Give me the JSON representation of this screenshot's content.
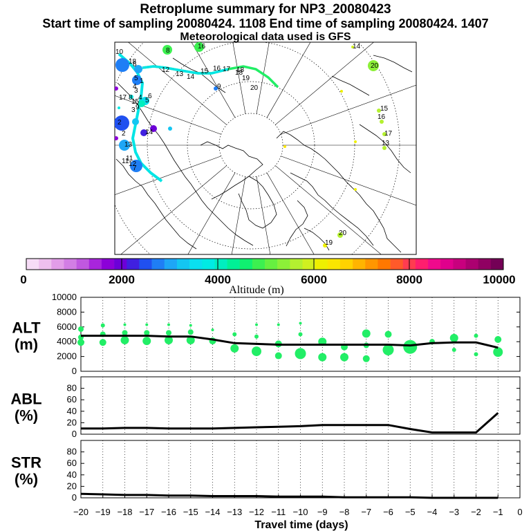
{
  "header": {
    "title": "Retroplume summary for NP3_20080423",
    "subtitle": "Start time of sampling 20080424.  1108     End time of sampling 20080424.  1407",
    "met": "Meteorological data used is GFS"
  },
  "colors": {
    "trajectory": "#00e5e5",
    "mainline": "#000000",
    "green_line": "#22ee66",
    "dot_green": "#22ee66"
  },
  "map": {
    "labels": [
      "10",
      "8",
      "6",
      "16",
      "4",
      "9",
      "18",
      "2",
      "5",
      "1",
      "3",
      "11",
      "12",
      "13",
      "14",
      "15",
      "16",
      "17",
      "18",
      "19",
      "20",
      "17",
      "4",
      "5",
      "12",
      "14",
      "13",
      "15",
      "11",
      "7",
      "8",
      "9",
      "3",
      "2",
      "6",
      "20",
      "14",
      "15",
      "16",
      "17",
      "13",
      "18",
      "19",
      "20"
    ]
  },
  "colorbar": {
    "label": "Altitude (m)",
    "tick_labels": [
      "0",
      "2000",
      "4000",
      "6000",
      "8000",
      "10000"
    ],
    "colors": [
      "#f6dcf6",
      "#eebfee",
      "#e29de8",
      "#d27ee4",
      "#c058e0",
      "#a825dc",
      "#8c00d8",
      "#6c00d8",
      "#4020e0",
      "#2050f0",
      "#1f7ef5",
      "#1ea6f6",
      "#14c6f2",
      "#0adff0",
      "#00ebe4",
      "#00eebf",
      "#00f096",
      "#10f070",
      "#3cf050",
      "#66f040",
      "#8cf038",
      "#b4f030",
      "#d0f020",
      "#eef000",
      "#fae600",
      "#ffd200",
      "#ffb400",
      "#ff9600",
      "#ff7800",
      "#ff5a2a",
      "#ff3c50",
      "#ff1e6e",
      "#f00a8c",
      "#e0008c",
      "#c8007e",
      "#ac0070",
      "#900062",
      "#740056"
    ]
  },
  "chart_data": [
    {
      "type": "line",
      "panel": "ALT",
      "ylabel": "ALT (m)",
      "ylim": [
        0,
        10000
      ],
      "yticks": [
        "0",
        "2000",
        "4000",
        "6000",
        "8000",
        "10000"
      ],
      "x": [
        -20,
        -19,
        -18,
        -17,
        -16,
        -15,
        -14,
        -13,
        -12,
        -11,
        -10,
        -9,
        -8,
        -7,
        -6,
        -5,
        -4,
        -3,
        -2,
        -1
      ],
      "values": [
        4800,
        4800,
        4800,
        4800,
        4700,
        4700,
        4300,
        3800,
        3700,
        3600,
        3600,
        3600,
        3600,
        3600,
        3600,
        3500,
        3800,
        3900,
        3900,
        3200
      ],
      "scatter": [
        {
          "x": -20,
          "y": 5700,
          "s": 4
        },
        {
          "x": -20,
          "y": 4600,
          "s": 4
        },
        {
          "x": -20,
          "y": 3900,
          "s": 5
        },
        {
          "x": -19,
          "y": 6200,
          "s": 3
        },
        {
          "x": -19,
          "y": 5000,
          "s": 4
        },
        {
          "x": -19,
          "y": 3900,
          "s": 5
        },
        {
          "x": -18,
          "y": 6300,
          "s": 2
        },
        {
          "x": -18,
          "y": 5200,
          "s": 4
        },
        {
          "x": -18,
          "y": 4200,
          "s": 6
        },
        {
          "x": -17,
          "y": 6300,
          "s": 2
        },
        {
          "x": -17,
          "y": 5200,
          "s": 4
        },
        {
          "x": -17,
          "y": 4100,
          "s": 6
        },
        {
          "x": -16,
          "y": 6300,
          "s": 2
        },
        {
          "x": -16,
          "y": 5200,
          "s": 4
        },
        {
          "x": -16,
          "y": 4200,
          "s": 6
        },
        {
          "x": -15,
          "y": 6200,
          "s": 2
        },
        {
          "x": -15,
          "y": 5300,
          "s": 4
        },
        {
          "x": -15,
          "y": 4200,
          "s": 6
        },
        {
          "x": -14,
          "y": 5600,
          "s": 2
        },
        {
          "x": -14,
          "y": 4100,
          "s": 5
        },
        {
          "x": -13,
          "y": 5000,
          "s": 3
        },
        {
          "x": -13,
          "y": 3100,
          "s": 6
        },
        {
          "x": -12,
          "y": 6300,
          "s": 2
        },
        {
          "x": -12,
          "y": 4700,
          "s": 3
        },
        {
          "x": -12,
          "y": 2700,
          "s": 7
        },
        {
          "x": -11,
          "y": 6300,
          "s": 2
        },
        {
          "x": -11,
          "y": 3700,
          "s": 5
        },
        {
          "x": -11,
          "y": 2100,
          "s": 5
        },
        {
          "x": -10,
          "y": 6500,
          "s": 2
        },
        {
          "x": -10,
          "y": 5000,
          "s": 3
        },
        {
          "x": -10,
          "y": 2400,
          "s": 8
        },
        {
          "x": -9,
          "y": 4000,
          "s": 6
        },
        {
          "x": -9,
          "y": 1900,
          "s": 6
        },
        {
          "x": -8,
          "y": 3300,
          "s": 5
        },
        {
          "x": -8,
          "y": 1900,
          "s": 6
        },
        {
          "x": -7,
          "y": 5100,
          "s": 6
        },
        {
          "x": -7,
          "y": 3500,
          "s": 4
        },
        {
          "x": -7,
          "y": 1700,
          "s": 5
        },
        {
          "x": -6,
          "y": 5000,
          "s": 5
        },
        {
          "x": -6,
          "y": 2900,
          "s": 8
        },
        {
          "x": -5,
          "y": 3300,
          "s": 10
        },
        {
          "x": -4,
          "y": 4000,
          "s": 4
        },
        {
          "x": -3,
          "y": 4500,
          "s": 6
        },
        {
          "x": -3,
          "y": 2900,
          "s": 3
        },
        {
          "x": -2,
          "y": 4800,
          "s": 3
        },
        {
          "x": -2,
          "y": 2300,
          "s": 3
        },
        {
          "x": -1,
          "y": 4300,
          "s": 5
        },
        {
          "x": -1,
          "y": 2600,
          "s": 7
        }
      ]
    },
    {
      "type": "line",
      "panel": "ABL",
      "ylabel": "ABL (%)",
      "ylim": [
        0,
        100
      ],
      "yticks": [
        "0",
        "20",
        "40",
        "60",
        "80"
      ],
      "x": [
        -20,
        -19,
        -18,
        -17,
        -16,
        -15,
        -14,
        -13,
        -12,
        -11,
        -10,
        -9,
        -8,
        -7,
        -6,
        -5,
        -4,
        -3,
        -2,
        -1
      ],
      "values": [
        10,
        10,
        11,
        11,
        10,
        10,
        10,
        11,
        12,
        13,
        14,
        16,
        16,
        16,
        16,
        9,
        3,
        3,
        3,
        37
      ]
    },
    {
      "type": "line",
      "panel": "STR",
      "ylabel": "STR (%)",
      "ylim": [
        0,
        100
      ],
      "yticks": [
        "0",
        "20",
        "40",
        "60",
        "80"
      ],
      "xlabel": "Travel time (days)",
      "xlim": [
        -20,
        0
      ],
      "xticks": [
        "−20",
        "−19",
        "−18",
        "−17",
        "−16",
        "−15",
        "−14",
        "−13",
        "−12",
        "−11",
        "−10",
        "−9",
        "−8",
        "−7",
        "−6",
        "−5",
        "−4",
        "−3",
        "−2",
        "−1",
        "0"
      ],
      "x": [
        -20,
        -19,
        -18,
        -17,
        -16,
        -15,
        -14,
        -13,
        -12,
        -11,
        -10,
        -9,
        -8,
        -7,
        -6,
        -5,
        -4,
        -3,
        -2,
        -1
      ],
      "values": [
        7,
        6,
        5,
        5,
        4,
        4,
        3,
        3,
        3,
        2,
        2,
        2,
        1,
        1,
        1,
        1,
        0,
        0,
        0,
        0
      ]
    }
  ]
}
